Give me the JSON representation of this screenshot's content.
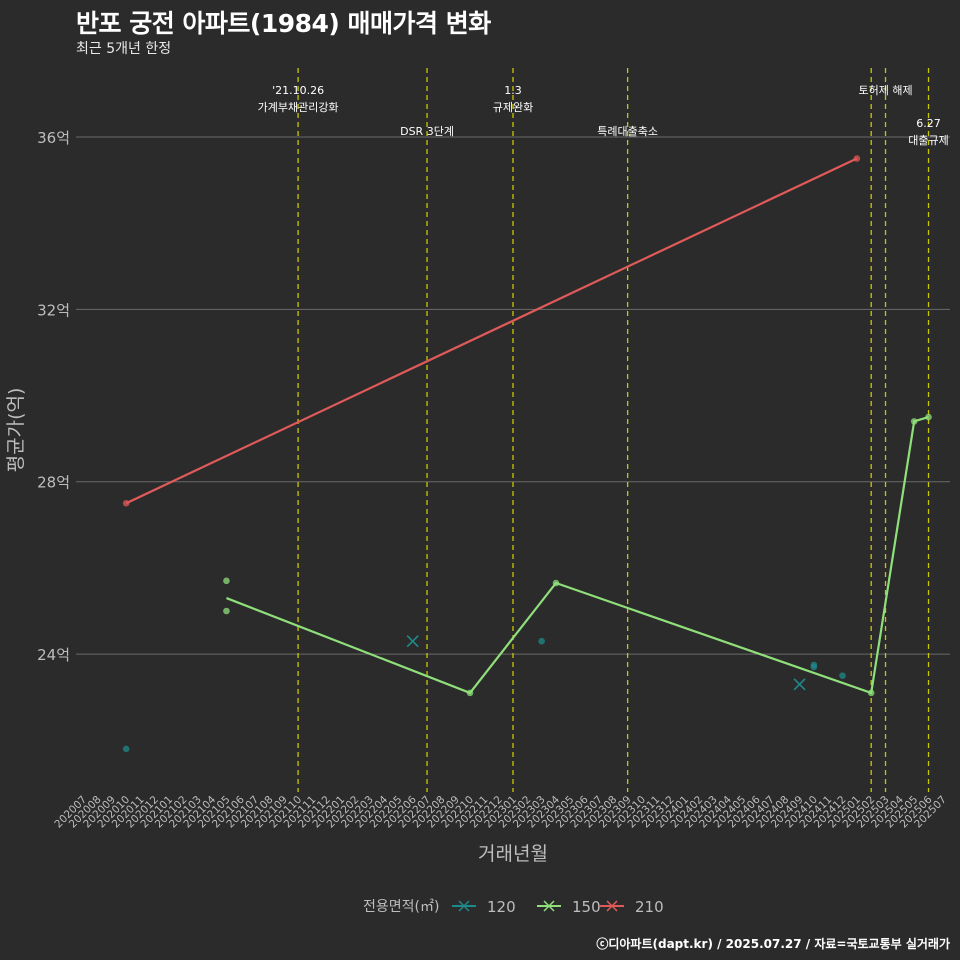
{
  "chart_data": {
    "type": "line",
    "title": "반포 궁전 아파트(1984) 매매가격 변화",
    "subtitle": "최근 5개년 한정",
    "xlabel": "거래년월",
    "ylabel": "평균가(억)",
    "ylim": [
      20.8,
      37.6
    ],
    "yticks": [
      24,
      28,
      32,
      36
    ],
    "ytick_labels": [
      "24억",
      "28억",
      "32억",
      "36억"
    ],
    "grid": true,
    "x_categories": [
      "202007",
      "202008",
      "202009",
      "202010",
      "202011",
      "202012",
      "202101",
      "202102",
      "202103",
      "202104",
      "202105",
      "202106",
      "202107",
      "202108",
      "202109",
      "202110",
      "202111",
      "202112",
      "202201",
      "202202",
      "202203",
      "202204",
      "202205",
      "202206",
      "202207",
      "202208",
      "202209",
      "202210",
      "202211",
      "202212",
      "202301",
      "202302",
      "202303",
      "202304",
      "202305",
      "202306",
      "202307",
      "202308",
      "202309",
      "202310",
      "202311",
      "202312",
      "202401",
      "202402",
      "202403",
      "202404",
      "202405",
      "202406",
      "202407",
      "202408",
      "202409",
      "202410",
      "202411",
      "202412",
      "202501",
      "202502",
      "202503",
      "202504",
      "202505",
      "202506",
      "202507"
    ],
    "legend": {
      "title": "전용면적(㎡)",
      "position": "bottom",
      "entries": [
        {
          "name": "120",
          "color": "#1f8a8a"
        },
        {
          "name": "150",
          "color": "#8fe07a"
        },
        {
          "name": "210",
          "color": "#e05a5a"
        }
      ]
    },
    "series": [
      {
        "name": "120",
        "color": "#1f8a8a",
        "line": [],
        "points": [
          {
            "x": "202010",
            "y": 21.8
          },
          {
            "x": "202303",
            "y": 24.3
          },
          {
            "x": "202410",
            "y": 23.7
          },
          {
            "x": "202410",
            "y": 23.75
          },
          {
            "x": "202412",
            "y": 23.5
          }
        ],
        "crosses": [
          {
            "x": "202206",
            "y": 24.3
          },
          {
            "x": "202409",
            "y": 23.3
          }
        ]
      },
      {
        "name": "150",
        "color": "#8fe07a",
        "line": [
          {
            "x": "202105",
            "y": 25.3
          },
          {
            "x": "202210",
            "y": 23.1
          },
          {
            "x": "202304",
            "y": 25.65
          },
          {
            "x": "202502",
            "y": 23.1
          },
          {
            "x": "202505",
            "y": 29.4
          },
          {
            "x": "202506",
            "y": 29.5
          }
        ],
        "points": [
          {
            "x": "202105",
            "y": 25.7
          },
          {
            "x": "202105",
            "y": 25.0
          },
          {
            "x": "202210",
            "y": 23.1
          },
          {
            "x": "202304",
            "y": 25.65
          },
          {
            "x": "202502",
            "y": 23.1
          },
          {
            "x": "202505",
            "y": 29.4
          },
          {
            "x": "202506",
            "y": 29.5
          }
        ],
        "crosses": []
      },
      {
        "name": "210",
        "color": "#e05a5a",
        "line": [
          {
            "x": "202010",
            "y": 27.5
          },
          {
            "x": "202501",
            "y": 35.5
          }
        ],
        "points": [
          {
            "x": "202010",
            "y": 27.5
          },
          {
            "x": "202501",
            "y": 35.5
          }
        ],
        "crosses": []
      }
    ],
    "annotations": [
      {
        "x": "202110",
        "lines": [
          "'21.10.26",
          "가계부채관리강화"
        ],
        "row": 1
      },
      {
        "x": "202207",
        "lines": [
          "DSR 3단계"
        ],
        "row": 2
      },
      {
        "x": "202301",
        "lines": [
          "1.3",
          "규제완화"
        ],
        "row": 1
      },
      {
        "x": "202309",
        "lines": [
          "특례대출축소"
        ],
        "row": 2
      },
      {
        "x": "202502",
        "lines": [],
        "row": 0
      },
      {
        "x": "202503",
        "lines": [
          "토허제 해제"
        ],
        "row": 1
      },
      {
        "x": "202506",
        "lines": [
          "6.27",
          "대출규제"
        ],
        "row": 3
      }
    ]
  },
  "caption": "ⓒ디아파트(dapt.kr) / 2025.07.27 / 자료=국토교통부 실거래가",
  "colors": {
    "background": "#2b2b2b",
    "grid": "#6a6a6a",
    "event_line": "#c8c800",
    "axis_text": "#bdbdbd"
  }
}
